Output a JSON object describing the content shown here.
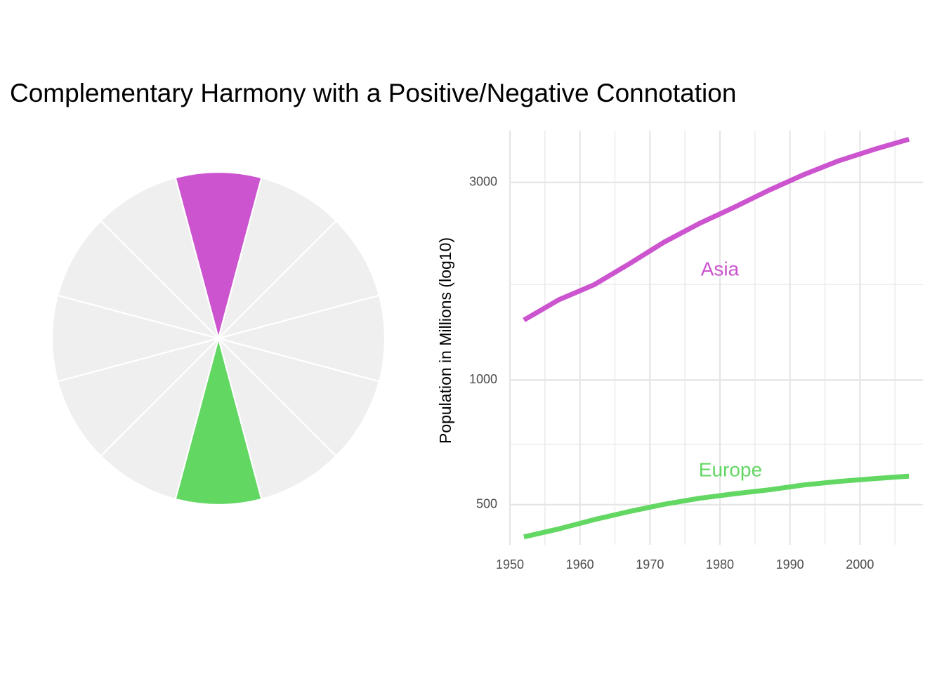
{
  "title": "Complementary Harmony with a Positive/Negative Connotation",
  "colors": {
    "positive": "#CC55CF",
    "negative": "#62D762",
    "neutral": "#EFEFEF",
    "grid": "#E5E5E5",
    "background": "#FFFFFF"
  },
  "chart_data": [
    {
      "type": "pie",
      "slices": [
        {
          "value": 1,
          "color": "#CC55CF"
        },
        {
          "value": 1,
          "color": "#EFEFEF"
        },
        {
          "value": 1,
          "color": "#EFEFEF"
        },
        {
          "value": 1,
          "color": "#EFEFEF"
        },
        {
          "value": 1,
          "color": "#EFEFEF"
        },
        {
          "value": 1,
          "color": "#EFEFEF"
        },
        {
          "value": 1,
          "color": "#62D762"
        },
        {
          "value": 1,
          "color": "#EFEFEF"
        },
        {
          "value": 1,
          "color": "#EFEFEF"
        },
        {
          "value": 1,
          "color": "#EFEFEF"
        },
        {
          "value": 1,
          "color": "#EFEFEF"
        },
        {
          "value": 1,
          "color": "#EFEFEF"
        }
      ],
      "start_angle_deg": -15,
      "legend": "none"
    },
    {
      "type": "line",
      "ylabel": "Population in Millions (log10)",
      "xlabel": "",
      "y_scale": "log10",
      "xlim": [
        1950,
        2009
      ],
      "ylim": [
        400,
        4000
      ],
      "x_ticks": [
        1950,
        1960,
        1970,
        1980,
        1990,
        2000
      ],
      "y_ticks": [
        500,
        1000,
        3000
      ],
      "y_minor_gridlines": [
        700,
        1700
      ],
      "grid": true,
      "legend": "none",
      "x": [
        1952,
        1957,
        1962,
        1967,
        1972,
        1977,
        1982,
        1987,
        1992,
        1997,
        2002,
        2007
      ],
      "series": [
        {
          "name": "Asia",
          "color": "#CC55CF",
          "values": [
            1395,
            1562,
            1697,
            1905,
            2151,
            2384,
            2610,
            2871,
            3133,
            3383,
            3601,
            3812
          ]
        },
        {
          "name": "Europe",
          "color": "#62D762",
          "values": [
            418,
            437,
            460,
            481,
            501,
            518,
            531,
            543,
            558,
            569,
            578,
            586
          ]
        }
      ],
      "annotations": [
        {
          "text": "Asia",
          "x": 1980,
          "y": 1840,
          "color": "#CC55CF"
        },
        {
          "text": "Europe",
          "x": 1981.5,
          "y": 602,
          "color": "#62D762"
        }
      ]
    }
  ]
}
